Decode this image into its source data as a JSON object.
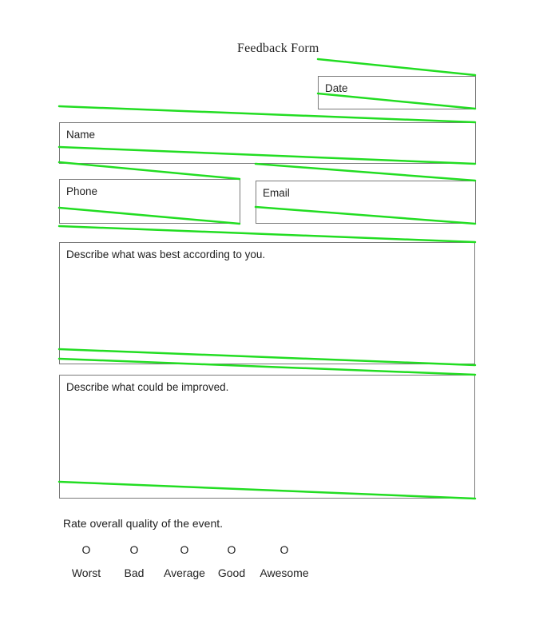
{
  "form": {
    "title": "Feedback Form",
    "fields": {
      "date": "Date",
      "name": "Name",
      "phone": "Phone",
      "email": "Email",
      "best": "Describe what was best according to you.",
      "improve": "Describe what could be improved."
    },
    "rating": {
      "question": "Rate overall quality of the event.",
      "options": [
        {
          "mark": "O",
          "label": "Worst"
        },
        {
          "mark": "O",
          "label": "Bad"
        },
        {
          "mark": "O",
          "label": "Average"
        },
        {
          "mark": "O",
          "label": "Good"
        },
        {
          "mark": "O",
          "label": "Awesome"
        }
      ]
    }
  },
  "annotation": {
    "stroke_color": "#22dd22"
  }
}
